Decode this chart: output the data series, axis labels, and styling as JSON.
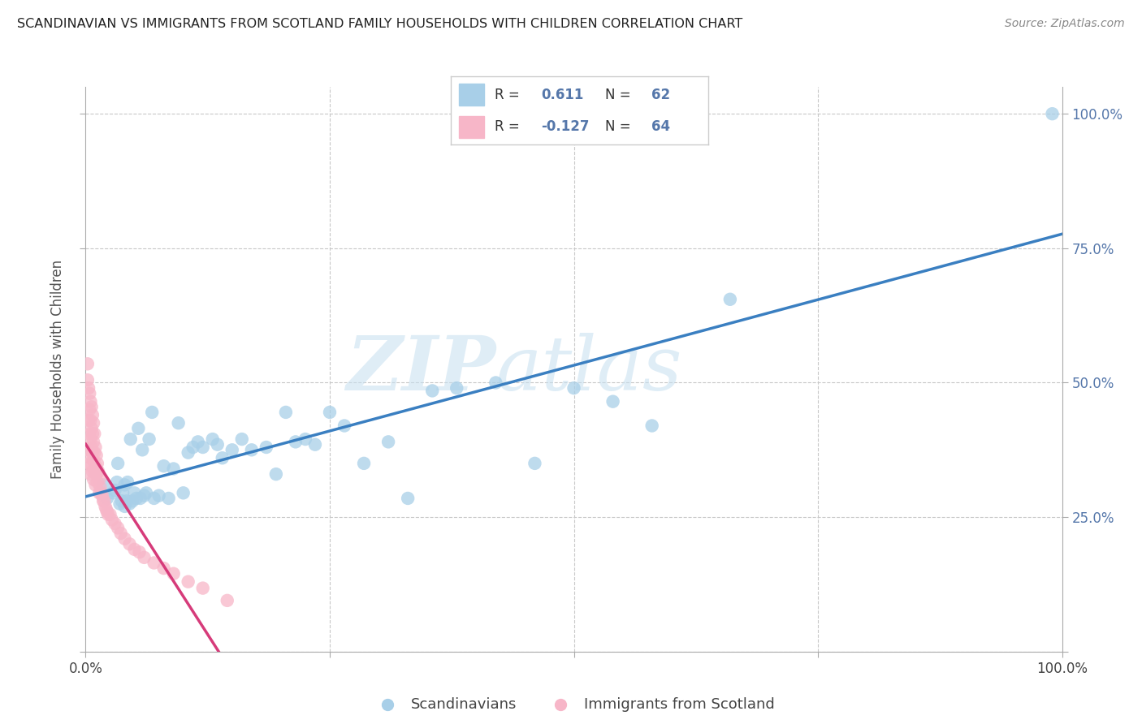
{
  "title": "SCANDINAVIAN VS IMMIGRANTS FROM SCOTLAND FAMILY HOUSEHOLDS WITH CHILDREN CORRELATION CHART",
  "source": "Source: ZipAtlas.com",
  "ylabel": "Family Households with Children",
  "watermark": "ZIPatlas",
  "legend_blue_r": "0.611",
  "legend_blue_n": "62",
  "legend_pink_r": "-0.127",
  "legend_pink_n": "64",
  "blue_dot_color": "#a8cfe8",
  "pink_dot_color": "#f7b6c8",
  "blue_line_color": "#3a7fc1",
  "pink_line_color": "#d63b7a",
  "pink_dash_color": "#e8a0bb",
  "grid_color": "#c8c8c8",
  "background_color": "#ffffff",
  "tick_color": "#5577aa",
  "blue_scatter_x": [
    0.018,
    0.022,
    0.028,
    0.03,
    0.032,
    0.033,
    0.035,
    0.037,
    0.038,
    0.04,
    0.04,
    0.042,
    0.043,
    0.045,
    0.046,
    0.048,
    0.05,
    0.052,
    0.054,
    0.056,
    0.058,
    0.06,
    0.062,
    0.065,
    0.068,
    0.07,
    0.075,
    0.08,
    0.085,
    0.09,
    0.095,
    0.1,
    0.105,
    0.11,
    0.115,
    0.12,
    0.13,
    0.135,
    0.14,
    0.15,
    0.16,
    0.17,
    0.185,
    0.195,
    0.205,
    0.215,
    0.225,
    0.235,
    0.25,
    0.265,
    0.285,
    0.31,
    0.33,
    0.355,
    0.38,
    0.42,
    0.46,
    0.5,
    0.54,
    0.58,
    0.66,
    0.99
  ],
  "blue_scatter_y": [
    0.31,
    0.285,
    0.295,
    0.3,
    0.315,
    0.35,
    0.275,
    0.28,
    0.295,
    0.27,
    0.31,
    0.28,
    0.315,
    0.275,
    0.395,
    0.28,
    0.295,
    0.285,
    0.415,
    0.285,
    0.375,
    0.29,
    0.295,
    0.395,
    0.445,
    0.285,
    0.29,
    0.345,
    0.285,
    0.34,
    0.425,
    0.295,
    0.37,
    0.38,
    0.39,
    0.38,
    0.395,
    0.385,
    0.36,
    0.375,
    0.395,
    0.375,
    0.38,
    0.33,
    0.445,
    0.39,
    0.395,
    0.385,
    0.445,
    0.42,
    0.35,
    0.39,
    0.285,
    0.485,
    0.49,
    0.5,
    0.35,
    0.49,
    0.465,
    0.42,
    0.655,
    1.0
  ],
  "pink_scatter_x": [
    0.002,
    0.002,
    0.003,
    0.003,
    0.003,
    0.004,
    0.004,
    0.004,
    0.004,
    0.005,
    0.005,
    0.005,
    0.005,
    0.005,
    0.006,
    0.006,
    0.006,
    0.006,
    0.007,
    0.007,
    0.007,
    0.007,
    0.008,
    0.008,
    0.008,
    0.008,
    0.009,
    0.009,
    0.009,
    0.01,
    0.01,
    0.01,
    0.011,
    0.011,
    0.012,
    0.012,
    0.013,
    0.014,
    0.014,
    0.015,
    0.016,
    0.017,
    0.018,
    0.019,
    0.02,
    0.021,
    0.022,
    0.023,
    0.025,
    0.027,
    0.03,
    0.033,
    0.036,
    0.04,
    0.045,
    0.05,
    0.055,
    0.06,
    0.07,
    0.08,
    0.09,
    0.105,
    0.12,
    0.145
  ],
  "pink_scatter_y": [
    0.535,
    0.505,
    0.49,
    0.43,
    0.375,
    0.48,
    0.45,
    0.405,
    0.35,
    0.465,
    0.43,
    0.395,
    0.36,
    0.33,
    0.455,
    0.415,
    0.38,
    0.345,
    0.44,
    0.405,
    0.37,
    0.335,
    0.425,
    0.39,
    0.355,
    0.32,
    0.405,
    0.37,
    0.335,
    0.38,
    0.345,
    0.31,
    0.365,
    0.33,
    0.35,
    0.315,
    0.335,
    0.32,
    0.295,
    0.305,
    0.295,
    0.29,
    0.28,
    0.28,
    0.27,
    0.265,
    0.26,
    0.255,
    0.255,
    0.245,
    0.238,
    0.23,
    0.22,
    0.21,
    0.2,
    0.19,
    0.185,
    0.175,
    0.165,
    0.155,
    0.145,
    0.13,
    0.118,
    0.095
  ]
}
